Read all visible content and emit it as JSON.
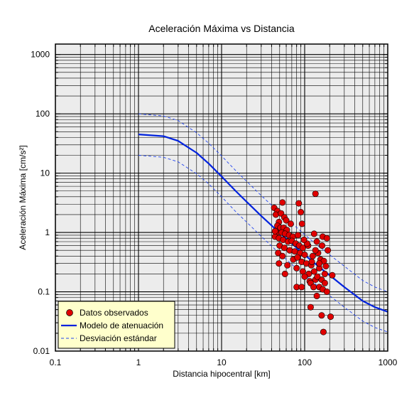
{
  "chart_data": {
    "type": "scatter",
    "title": "Aceleración Máxima vs Distancia",
    "xlabel": "Distancia hipocentral [km]",
    "ylabel": "Aceleración Máxima [cm/s²]",
    "xscale": "log",
    "yscale": "log",
    "xlim": [
      0.1,
      1000
    ],
    "ylim": [
      0.01,
      1500
    ],
    "xticks": [
      "0.1",
      "1",
      "10",
      "100",
      "1000"
    ],
    "yticks": [
      "0.01",
      "0.1",
      "1",
      "10",
      "100",
      "1000"
    ],
    "grid": true,
    "legend": {
      "placement": "bottom-left",
      "entries": [
        "Datos observados",
        "Modelo de atenuación",
        "Desviación estándar"
      ]
    },
    "colors": {
      "points": "#e00000",
      "model": "#0022dd",
      "deviation": "#2244ee",
      "plot_background": "#ececec",
      "legend_background": "#ffffcc"
    },
    "series": [
      {
        "name": "Datos observados",
        "kind": "scatter",
        "points": [
          [
            135,
            4.5
          ],
          [
            54,
            3.2
          ],
          [
            43,
            2.6
          ],
          [
            47,
            2.3
          ],
          [
            85,
            3.1
          ],
          [
            90,
            2.2
          ],
          [
            45,
            2.0
          ],
          [
            52,
            2.1
          ],
          [
            57,
            1.8
          ],
          [
            49,
            1.5
          ],
          [
            60,
            1.6
          ],
          [
            93,
            1.4
          ],
          [
            68,
            1.4
          ],
          [
            47,
            1.3
          ],
          [
            51,
            1.2
          ],
          [
            56,
            1.2
          ],
          [
            61,
            1.1
          ],
          [
            46,
            1.0
          ],
          [
            53,
            1.0
          ],
          [
            58,
            0.95
          ],
          [
            65,
            0.9
          ],
          [
            72,
            0.85
          ],
          [
            44,
            0.85
          ],
          [
            49,
            0.8
          ],
          [
            55,
            0.75
          ],
          [
            63,
            0.7
          ],
          [
            70,
            0.72
          ],
          [
            78,
            0.65
          ],
          [
            86,
            0.6
          ],
          [
            95,
            0.55
          ],
          [
            130,
            0.95
          ],
          [
            165,
            0.85
          ],
          [
            140,
            0.7
          ],
          [
            185,
            0.8
          ],
          [
            50,
            0.6
          ],
          [
            57,
            0.55
          ],
          [
            66,
            0.5
          ],
          [
            76,
            0.48
          ],
          [
            88,
            0.45
          ],
          [
            100,
            0.42
          ],
          [
            110,
            0.6
          ],
          [
            48,
            0.45
          ],
          [
            54,
            0.4
          ],
          [
            73,
            0.35
          ],
          [
            82,
            0.38
          ],
          [
            92,
            0.32
          ],
          [
            105,
            0.3
          ],
          [
            120,
            0.28
          ],
          [
            155,
            0.35
          ],
          [
            170,
            0.33
          ],
          [
            145,
            0.45
          ],
          [
            190,
            0.5
          ],
          [
            162,
            0.6
          ],
          [
            135,
            0.5
          ],
          [
            125,
            0.4
          ],
          [
            49,
            0.3
          ],
          [
            58,
            0.2
          ],
          [
            80,
            0.25
          ],
          [
            95,
            0.22
          ],
          [
            112,
            0.2
          ],
          [
            130,
            0.22
          ],
          [
            150,
            0.25
          ],
          [
            175,
            0.2
          ],
          [
            215,
            0.19
          ],
          [
            100,
            0.18
          ],
          [
            115,
            0.15
          ],
          [
            135,
            0.16
          ],
          [
            160,
            0.16
          ],
          [
            118,
            0.14
          ],
          [
            175,
            0.14
          ],
          [
            80,
            0.12
          ],
          [
            92,
            0.12
          ],
          [
            128,
            0.12
          ],
          [
            150,
            0.12
          ],
          [
            165,
            0.11
          ],
          [
            185,
            0.1
          ],
          [
            140,
            0.085
          ],
          [
            118,
            0.055
          ],
          [
            160,
            0.04
          ],
          [
            205,
            0.038
          ],
          [
            168,
            0.021
          ],
          [
            107,
            0.65
          ],
          [
            98,
            0.75
          ],
          [
            150,
            0.3
          ],
          [
            180,
            0.27
          ],
          [
            83,
            0.9
          ],
          [
            62,
            0.28
          ],
          [
            44,
            1.05
          ],
          [
            122,
            0.32
          ],
          [
            142,
            0.18
          ]
        ]
      },
      {
        "name": "Modelo de atenuación",
        "kind": "line",
        "x": [
          1,
          2,
          3,
          5,
          7,
          10,
          15,
          20,
          30,
          50,
          70,
          100,
          150,
          200,
          300,
          500,
          700,
          1000
        ],
        "y": [
          45,
          42,
          35,
          22,
          14.5,
          8.8,
          4.9,
          3.3,
          1.9,
          0.98,
          0.65,
          0.42,
          0.26,
          0.19,
          0.12,
          0.07,
          0.055,
          0.046
        ]
      },
      {
        "name": "Desviación estándar superior",
        "kind": "dashed",
        "x": [
          1,
          2,
          3,
          5,
          7,
          10,
          15,
          20,
          30,
          50,
          70,
          100,
          150,
          200,
          300,
          500,
          700,
          1000
        ],
        "y": [
          100,
          92,
          77,
          48,
          32,
          19.5,
          10.8,
          7.3,
          4.2,
          2.15,
          1.43,
          0.92,
          0.57,
          0.42,
          0.27,
          0.155,
          0.12,
          0.1
        ]
      },
      {
        "name": "Desviación estándar inferior",
        "kind": "dashed",
        "x": [
          1,
          2,
          3,
          5,
          7,
          10,
          15,
          20,
          30,
          50,
          70,
          100,
          150,
          200,
          300,
          500,
          700,
          1000
        ],
        "y": [
          20,
          18.5,
          15.5,
          9.8,
          6.6,
          4.0,
          2.2,
          1.5,
          0.86,
          0.44,
          0.29,
          0.19,
          0.12,
          0.086,
          0.055,
          0.032,
          0.025,
          0.021
        ]
      }
    ]
  }
}
